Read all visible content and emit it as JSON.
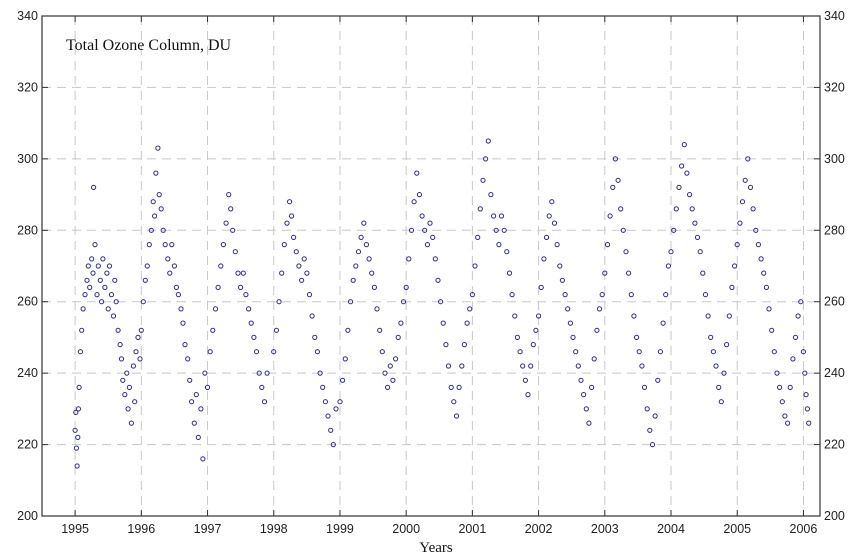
{
  "chart_data": {
    "type": "scatter",
    "title": "Total Ozone Column, DU",
    "xlabel": "Years",
    "ylabel": "",
    "xlim": [
      1994.5,
      2006.25
    ],
    "ylim": [
      200,
      340
    ],
    "xticks": [
      "1995",
      "1996",
      "1997",
      "1998",
      "1999",
      "2000",
      "2001",
      "2002",
      "2003",
      "2004",
      "2005",
      "2006"
    ],
    "yticks": [
      "200",
      "220",
      "240",
      "260",
      "280",
      "300",
      "320",
      "340"
    ],
    "grid": true,
    "marker": "open-circle",
    "color": "#2b2d8e",
    "series": [
      {
        "values": [
          [
            1995.0,
            224
          ],
          [
            1995.01,
            229
          ],
          [
            1995.02,
            219
          ],
          [
            1995.03,
            214
          ],
          [
            1995.04,
            222
          ],
          [
            1995.05,
            230
          ],
          [
            1995.06,
            236
          ],
          [
            1995.08,
            246
          ],
          [
            1995.1,
            252
          ],
          [
            1995.12,
            258
          ],
          [
            1995.15,
            262
          ],
          [
            1995.18,
            266
          ],
          [
            1995.2,
            270
          ],
          [
            1995.22,
            264
          ],
          [
            1995.25,
            272
          ],
          [
            1995.27,
            268
          ],
          [
            1995.28,
            292
          ],
          [
            1995.3,
            276
          ],
          [
            1995.33,
            262
          ],
          [
            1995.35,
            270
          ],
          [
            1995.38,
            266
          ],
          [
            1995.4,
            260
          ],
          [
            1995.42,
            272
          ],
          [
            1995.45,
            264
          ],
          [
            1995.48,
            268
          ],
          [
            1995.5,
            258
          ],
          [
            1995.52,
            270
          ],
          [
            1995.55,
            262
          ],
          [
            1995.58,
            256
          ],
          [
            1995.6,
            266
          ],
          [
            1995.62,
            260
          ],
          [
            1995.65,
            252
          ],
          [
            1995.68,
            248
          ],
          [
            1995.7,
            244
          ],
          [
            1995.72,
            238
          ],
          [
            1995.75,
            234
          ],
          [
            1995.78,
            240
          ],
          [
            1995.8,
            230
          ],
          [
            1995.82,
            236
          ],
          [
            1995.85,
            226
          ],
          [
            1995.88,
            242
          ],
          [
            1995.9,
            232
          ],
          [
            1995.92,
            246
          ],
          [
            1995.95,
            250
          ],
          [
            1995.98,
            244
          ],
          [
            1996.0,
            252
          ],
          [
            1996.03,
            260
          ],
          [
            1996.06,
            266
          ],
          [
            1996.09,
            270
          ],
          [
            1996.12,
            276
          ],
          [
            1996.15,
            280
          ],
          [
            1996.18,
            288
          ],
          [
            1996.2,
            284
          ],
          [
            1996.22,
            296
          ],
          [
            1996.25,
            303
          ],
          [
            1996.27,
            290
          ],
          [
            1996.3,
            286
          ],
          [
            1996.33,
            280
          ],
          [
            1996.36,
            276
          ],
          [
            1996.4,
            272
          ],
          [
            1996.43,
            268
          ],
          [
            1996.46,
            276
          ],
          [
            1996.5,
            270
          ],
          [
            1996.53,
            264
          ],
          [
            1996.56,
            262
          ],
          [
            1996.6,
            258
          ],
          [
            1996.63,
            254
          ],
          [
            1996.66,
            248
          ],
          [
            1996.7,
            244
          ],
          [
            1996.73,
            238
          ],
          [
            1996.76,
            232
          ],
          [
            1996.8,
            226
          ],
          [
            1996.83,
            234
          ],
          [
            1996.86,
            222
          ],
          [
            1996.9,
            230
          ],
          [
            1996.93,
            216
          ],
          [
            1996.96,
            240
          ],
          [
            1997.0,
            236
          ],
          [
            1997.04,
            246
          ],
          [
            1997.08,
            252
          ],
          [
            1997.12,
            258
          ],
          [
            1997.16,
            264
          ],
          [
            1997.2,
            270
          ],
          [
            1997.24,
            276
          ],
          [
            1997.28,
            282
          ],
          [
            1997.32,
            290
          ],
          [
            1997.35,
            286
          ],
          [
            1997.38,
            280
          ],
          [
            1997.42,
            274
          ],
          [
            1997.46,
            268
          ],
          [
            1997.5,
            264
          ],
          [
            1997.54,
            268
          ],
          [
            1997.58,
            262
          ],
          [
            1997.62,
            258
          ],
          [
            1997.66,
            254
          ],
          [
            1997.7,
            250
          ],
          [
            1997.74,
            246
          ],
          [
            1997.78,
            240
          ],
          [
            1997.82,
            236
          ],
          [
            1997.86,
            232
          ],
          [
            1997.9,
            240
          ],
          [
            1998.0,
            246
          ],
          [
            1998.04,
            252
          ],
          [
            1998.08,
            260
          ],
          [
            1998.12,
            268
          ],
          [
            1998.16,
            276
          ],
          [
            1998.2,
            282
          ],
          [
            1998.24,
            288
          ],
          [
            1998.27,
            284
          ],
          [
            1998.3,
            278
          ],
          [
            1998.34,
            274
          ],
          [
            1998.38,
            270
          ],
          [
            1998.42,
            266
          ],
          [
            1998.46,
            272
          ],
          [
            1998.5,
            268
          ],
          [
            1998.54,
            262
          ],
          [
            1998.58,
            256
          ],
          [
            1998.62,
            250
          ],
          [
            1998.66,
            246
          ],
          [
            1998.7,
            240
          ],
          [
            1998.74,
            236
          ],
          [
            1998.78,
            232
          ],
          [
            1998.82,
            228
          ],
          [
            1998.86,
            224
          ],
          [
            1998.9,
            220
          ],
          [
            1998.94,
            230
          ],
          [
            1999.0,
            232
          ],
          [
            1999.04,
            238
          ],
          [
            1999.08,
            244
          ],
          [
            1999.12,
            252
          ],
          [
            1999.16,
            260
          ],
          [
            1999.2,
            266
          ],
          [
            1999.24,
            270
          ],
          [
            1999.28,
            274
          ],
          [
            1999.32,
            278
          ],
          [
            1999.36,
            282
          ],
          [
            1999.4,
            276
          ],
          [
            1999.44,
            272
          ],
          [
            1999.48,
            268
          ],
          [
            1999.52,
            264
          ],
          [
            1999.56,
            258
          ],
          [
            1999.6,
            252
          ],
          [
            1999.64,
            246
          ],
          [
            1999.68,
            240
          ],
          [
            1999.72,
            236
          ],
          [
            1999.76,
            242
          ],
          [
            1999.8,
            238
          ],
          [
            1999.84,
            244
          ],
          [
            1999.88,
            250
          ],
          [
            1999.92,
            254
          ],
          [
            1999.96,
            260
          ],
          [
            2000.0,
            264
          ],
          [
            2000.04,
            272
          ],
          [
            2000.08,
            280
          ],
          [
            2000.12,
            288
          ],
          [
            2000.16,
            296
          ],
          [
            2000.2,
            290
          ],
          [
            2000.24,
            284
          ],
          [
            2000.28,
            280
          ],
          [
            2000.32,
            276
          ],
          [
            2000.36,
            282
          ],
          [
            2000.4,
            278
          ],
          [
            2000.44,
            272
          ],
          [
            2000.48,
            266
          ],
          [
            2000.52,
            260
          ],
          [
            2000.56,
            254
          ],
          [
            2000.6,
            248
          ],
          [
            2000.64,
            242
          ],
          [
            2000.68,
            236
          ],
          [
            2000.72,
            232
          ],
          [
            2000.76,
            228
          ],
          [
            2000.8,
            236
          ],
          [
            2000.84,
            242
          ],
          [
            2000.88,
            248
          ],
          [
            2000.92,
            254
          ],
          [
            2000.96,
            258
          ],
          [
            2001.0,
            262
          ],
          [
            2001.04,
            270
          ],
          [
            2001.08,
            278
          ],
          [
            2001.12,
            286
          ],
          [
            2001.16,
            294
          ],
          [
            2001.2,
            300
          ],
          [
            2001.24,
            305
          ],
          [
            2001.28,
            290
          ],
          [
            2001.32,
            284
          ],
          [
            2001.36,
            280
          ],
          [
            2001.4,
            276
          ],
          [
            2001.44,
            284
          ],
          [
            2001.48,
            280
          ],
          [
            2001.52,
            274
          ],
          [
            2001.56,
            268
          ],
          [
            2001.6,
            262
          ],
          [
            2001.64,
            256
          ],
          [
            2001.68,
            250
          ],
          [
            2001.72,
            246
          ],
          [
            2001.76,
            242
          ],
          [
            2001.8,
            238
          ],
          [
            2001.84,
            234
          ],
          [
            2001.88,
            242
          ],
          [
            2001.92,
            248
          ],
          [
            2001.96,
            252
          ],
          [
            2002.0,
            256
          ],
          [
            2002.04,
            264
          ],
          [
            2002.08,
            272
          ],
          [
            2002.12,
            278
          ],
          [
            2002.16,
            284
          ],
          [
            2002.2,
            288
          ],
          [
            2002.24,
            282
          ],
          [
            2002.28,
            276
          ],
          [
            2002.32,
            270
          ],
          [
            2002.36,
            266
          ],
          [
            2002.4,
            262
          ],
          [
            2002.44,
            258
          ],
          [
            2002.48,
            254
          ],
          [
            2002.52,
            250
          ],
          [
            2002.56,
            246
          ],
          [
            2002.6,
            242
          ],
          [
            2002.64,
            238
          ],
          [
            2002.68,
            234
          ],
          [
            2002.72,
            230
          ],
          [
            2002.76,
            226
          ],
          [
            2002.8,
            236
          ],
          [
            2002.84,
            244
          ],
          [
            2002.88,
            252
          ],
          [
            2002.92,
            258
          ],
          [
            2002.96,
            262
          ],
          [
            2003.0,
            268
          ],
          [
            2003.04,
            276
          ],
          [
            2003.08,
            284
          ],
          [
            2003.12,
            292
          ],
          [
            2003.16,
            300
          ],
          [
            2003.2,
            294
          ],
          [
            2003.24,
            286
          ],
          [
            2003.28,
            280
          ],
          [
            2003.32,
            274
          ],
          [
            2003.36,
            268
          ],
          [
            2003.4,
            262
          ],
          [
            2003.44,
            256
          ],
          [
            2003.48,
            250
          ],
          [
            2003.52,
            246
          ],
          [
            2003.56,
            242
          ],
          [
            2003.6,
            236
          ],
          [
            2003.64,
            230
          ],
          [
            2003.68,
            224
          ],
          [
            2003.72,
            220
          ],
          [
            2003.76,
            228
          ],
          [
            2003.8,
            238
          ],
          [
            2003.84,
            246
          ],
          [
            2003.88,
            254
          ],
          [
            2003.92,
            262
          ],
          [
            2003.96,
            270
          ],
          [
            2004.0,
            274
          ],
          [
            2004.04,
            280
          ],
          [
            2004.08,
            286
          ],
          [
            2004.12,
            292
          ],
          [
            2004.16,
            298
          ],
          [
            2004.2,
            304
          ],
          [
            2004.24,
            296
          ],
          [
            2004.28,
            290
          ],
          [
            2004.32,
            286
          ],
          [
            2004.36,
            282
          ],
          [
            2004.4,
            278
          ],
          [
            2004.44,
            274
          ],
          [
            2004.48,
            268
          ],
          [
            2004.52,
            262
          ],
          [
            2004.56,
            256
          ],
          [
            2004.6,
            250
          ],
          [
            2004.64,
            246
          ],
          [
            2004.68,
            242
          ],
          [
            2004.72,
            236
          ],
          [
            2004.76,
            232
          ],
          [
            2004.8,
            240
          ],
          [
            2004.84,
            248
          ],
          [
            2004.88,
            256
          ],
          [
            2004.92,
            264
          ],
          [
            2004.96,
            270
          ],
          [
            2005.0,
            276
          ],
          [
            2005.04,
            282
          ],
          [
            2005.08,
            288
          ],
          [
            2005.12,
            294
          ],
          [
            2005.16,
            300
          ],
          [
            2005.2,
            292
          ],
          [
            2005.24,
            286
          ],
          [
            2005.28,
            280
          ],
          [
            2005.32,
            276
          ],
          [
            2005.36,
            272
          ],
          [
            2005.4,
            268
          ],
          [
            2005.44,
            264
          ],
          [
            2005.48,
            258
          ],
          [
            2005.52,
            252
          ],
          [
            2005.56,
            246
          ],
          [
            2005.6,
            240
          ],
          [
            2005.64,
            236
          ],
          [
            2005.68,
            232
          ],
          [
            2005.72,
            228
          ],
          [
            2005.76,
            226
          ],
          [
            2005.8,
            236
          ],
          [
            2005.84,
            244
          ],
          [
            2005.88,
            250
          ],
          [
            2005.92,
            256
          ],
          [
            2005.96,
            260
          ],
          [
            2006.0,
            246
          ],
          [
            2006.02,
            240
          ],
          [
            2006.04,
            234
          ],
          [
            2006.06,
            230
          ],
          [
            2006.08,
            226
          ]
        ]
      }
    ]
  }
}
